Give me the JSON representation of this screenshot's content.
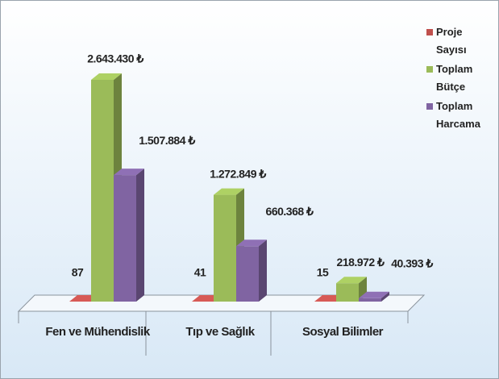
{
  "chart_data": {
    "type": "bar3d",
    "categories": [
      "Fen ve Mühendislik",
      "Tıp ve Sağlık",
      "Sosyal Bilimler"
    ],
    "series": [
      {
        "name": "Proje Sayısı",
        "color": "#c0504d",
        "values": [
          87,
          41,
          15
        ]
      },
      {
        "name": "Toplam Bütçe",
        "color": "#9bbb59",
        "values": [
          2643430,
          1272849,
          218972
        ],
        "value_labels": [
          "2.643.430 ₺",
          "1.272.849 ₺",
          "218.972 ₺"
        ]
      },
      {
        "name": "Toplam Harcama",
        "color": "#8064a2",
        "values": [
          1507884,
          660368,
          40393
        ],
        "value_labels": [
          "1.507.884 ₺",
          "660.368 ₺",
          "40.393 ₺"
        ]
      }
    ],
    "legend": "right"
  }
}
